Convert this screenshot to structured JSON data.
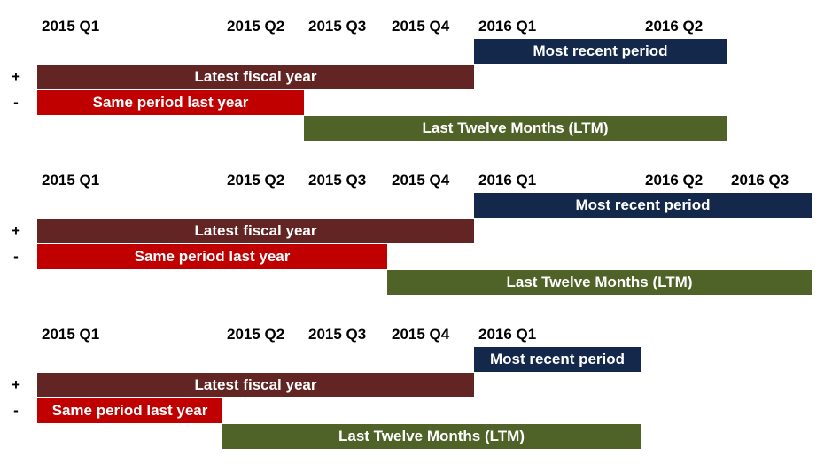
{
  "panels": [
    {
      "quarters": [
        "2015 Q1",
        "2015 Q2",
        "2015 Q3",
        "2015 Q4",
        "2016 Q1",
        "2016 Q2"
      ],
      "rows": [
        {
          "label": "Most recent period"
        },
        {
          "sign": "+",
          "label": "Latest fiscal year"
        },
        {
          "sign": "-",
          "label": "Same period last year"
        },
        {
          "label": "Last Twelve Months (LTM)"
        }
      ]
    },
    {
      "quarters": [
        "2015 Q1",
        "2015 Q2",
        "2015 Q3",
        "2015 Q4",
        "2016 Q1",
        "2016 Q2",
        "2016 Q3"
      ],
      "rows": [
        {
          "label": "Most recent period"
        },
        {
          "sign": "+",
          "label": "Latest fiscal year"
        },
        {
          "sign": "-",
          "label": "Same period last year"
        },
        {
          "label": "Last Twelve Months (LTM)"
        }
      ]
    },
    {
      "quarters": [
        "2015 Q1",
        "2015 Q2",
        "2015 Q3",
        "2015 Q4",
        "2016 Q1"
      ],
      "rows": [
        {
          "label": "Most recent period"
        },
        {
          "sign": "+",
          "label": "Latest fiscal year"
        },
        {
          "sign": "-",
          "label": "Same period last year"
        },
        {
          "label": "Last Twelve Months (LTM)"
        }
      ]
    }
  ]
}
